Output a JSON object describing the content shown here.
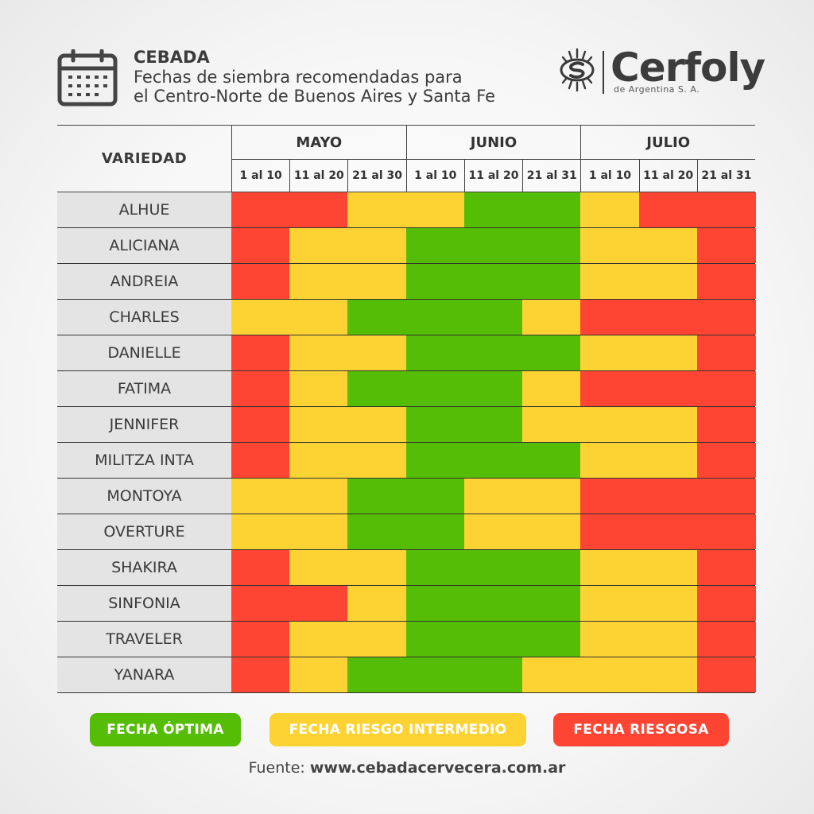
{
  "header": {
    "title": "CEBADA",
    "subtitle_line1": "Fechas de siembra recomendadas para",
    "subtitle_line2": "el Centro-Norte de Buenos Aires y Santa Fe",
    "icon": "calendar-icon"
  },
  "brand": {
    "name": "Cerfoly",
    "tagline": "de Argentina S. A.",
    "logo": "cerfoly-logo"
  },
  "table": {
    "variety_header": "VARIEDAD",
    "months": [
      "MAYO",
      "JUNIO",
      "JULIO"
    ],
    "periods": [
      "1 al 10",
      "11 al 20",
      "21 al 30",
      "1 al 10",
      "11 al 20",
      "21 al 31",
      "1 al 10",
      "11 al 20",
      "21 al 31"
    ]
  },
  "colors": {
    "O": "#55bd06",
    "I": "#fdd334",
    "R": "#fe4432"
  },
  "chart_data": {
    "type": "heatmap",
    "x": [
      "MAYO 1 al 10",
      "MAYO 11 al 20",
      "MAYO 21 al 30",
      "JUNIO 1 al 10",
      "JUNIO 11 al 20",
      "JUNIO 21 al 31",
      "JULIO 1 al 10",
      "JULIO 11 al 20",
      "JULIO 21 al 31"
    ],
    "categories_legend": {
      "O": "FECHA ÓPTIMA",
      "I": "FECHA RIESGO INTERMEDIO",
      "R": "FECHA RIESGOSA"
    },
    "rows": [
      {
        "variety": "ALHUE",
        "values": [
          "R",
          "R",
          "I",
          "I",
          "O",
          "O",
          "I",
          "R",
          "R"
        ]
      },
      {
        "variety": "ALICIANA",
        "values": [
          "R",
          "I",
          "I",
          "O",
          "O",
          "O",
          "I",
          "I",
          "R"
        ]
      },
      {
        "variety": "ANDREIA",
        "values": [
          "R",
          "I",
          "I",
          "O",
          "O",
          "O",
          "I",
          "I",
          "R"
        ]
      },
      {
        "variety": "CHARLES",
        "values": [
          "I",
          "I",
          "O",
          "O",
          "O",
          "I",
          "R",
          "R",
          "R"
        ]
      },
      {
        "variety": "DANIELLE",
        "values": [
          "R",
          "I",
          "I",
          "O",
          "O",
          "O",
          "I",
          "I",
          "R"
        ]
      },
      {
        "variety": "FATIMA",
        "values": [
          "R",
          "I",
          "O",
          "O",
          "O",
          "I",
          "R",
          "R",
          "R"
        ]
      },
      {
        "variety": "JENNIFER",
        "values": [
          "R",
          "I",
          "I",
          "O",
          "O",
          "I",
          "I",
          "I",
          "R"
        ]
      },
      {
        "variety": "MILITZA INTA",
        "values": [
          "R",
          "I",
          "I",
          "O",
          "O",
          "O",
          "I",
          "I",
          "R"
        ]
      },
      {
        "variety": "MONTOYA",
        "values": [
          "I",
          "I",
          "O",
          "O",
          "I",
          "I",
          "R",
          "R",
          "R"
        ]
      },
      {
        "variety": "OVERTURE",
        "values": [
          "I",
          "I",
          "O",
          "O",
          "I",
          "I",
          "R",
          "R",
          "R"
        ]
      },
      {
        "variety": "SHAKIRA",
        "values": [
          "R",
          "I",
          "I",
          "O",
          "O",
          "O",
          "I",
          "I",
          "R"
        ]
      },
      {
        "variety": "SINFONIA",
        "values": [
          "R",
          "R",
          "I",
          "O",
          "O",
          "O",
          "I",
          "I",
          "R"
        ]
      },
      {
        "variety": "TRAVELER",
        "values": [
          "R",
          "I",
          "I",
          "O",
          "O",
          "O",
          "I",
          "I",
          "R"
        ]
      },
      {
        "variety": "YANARA",
        "values": [
          "R",
          "I",
          "O",
          "O",
          "O",
          "I",
          "I",
          "I",
          "R"
        ]
      }
    ]
  },
  "legend": [
    {
      "key": "O",
      "label": "FECHA ÓPTIMA"
    },
    {
      "key": "I",
      "label": "FECHA RIESGO INTERMEDIO"
    },
    {
      "key": "R",
      "label": "FECHA RIESGOSA"
    }
  ],
  "source": {
    "prefix": "Fuente: ",
    "url": "www.cebadacervecera.com.ar"
  }
}
